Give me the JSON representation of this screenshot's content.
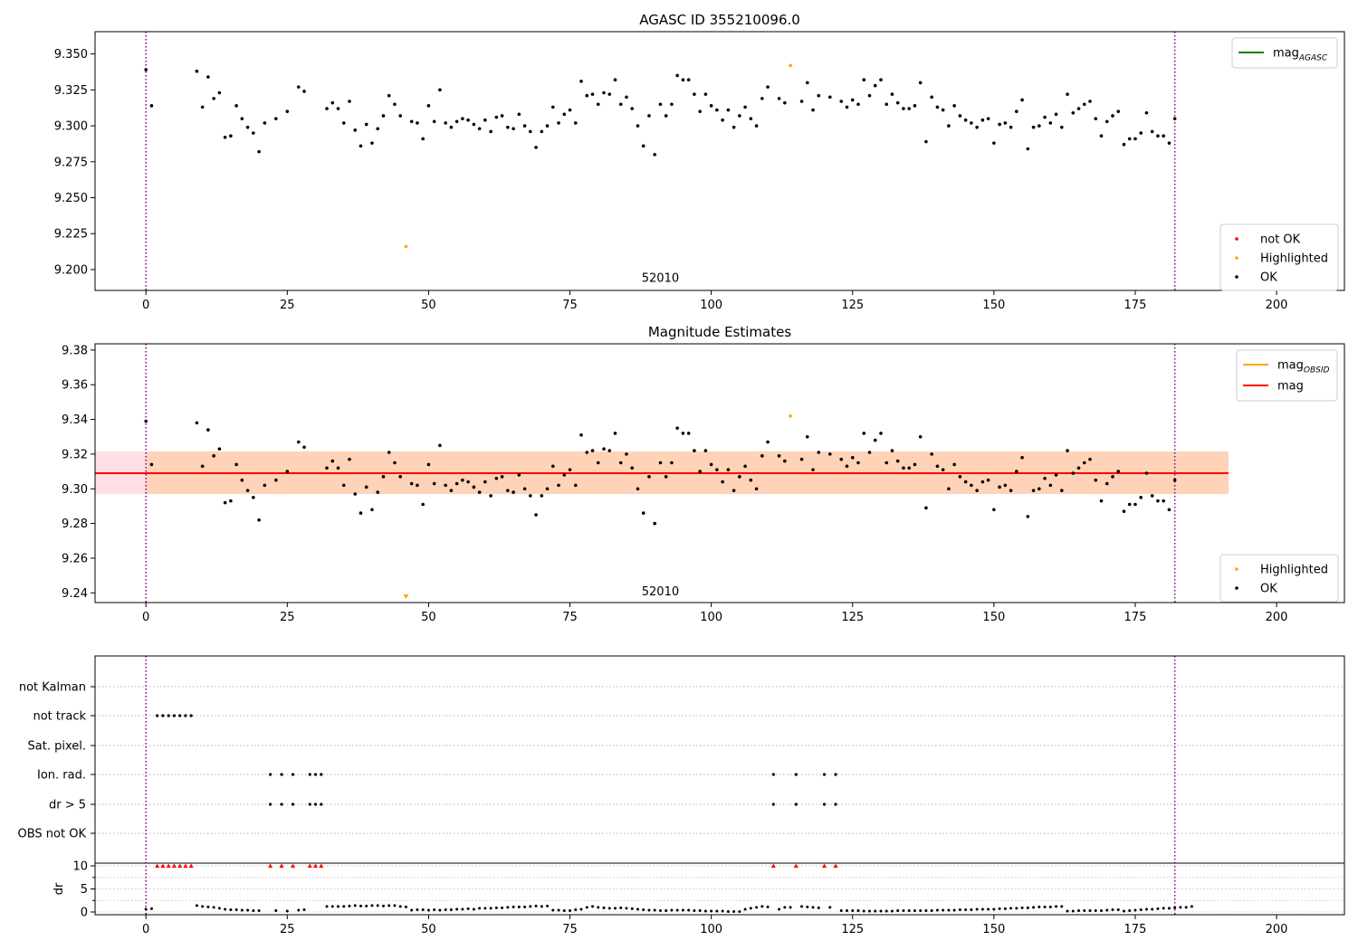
{
  "figure": {
    "vline_x": [
      0,
      182
    ]
  },
  "chart_data": [
    {
      "type": "scatter",
      "title": "AGASC ID 355210096.0",
      "xlim": [
        -9,
        212
      ],
      "ylim": [
        9.1855,
        9.3655
      ],
      "xticks": [
        0,
        25,
        50,
        75,
        100,
        125,
        150,
        175,
        200
      ],
      "xtick_labels": [
        "0",
        "25",
        "50",
        "75",
        "100",
        "125",
        "150",
        "175",
        "200"
      ],
      "yticks": [
        9.2,
        9.225,
        9.25,
        9.275,
        9.3,
        9.325,
        9.35
      ],
      "ytick_labels": [
        "9.200",
        "9.225",
        "9.250",
        "9.275",
        "9.300",
        "9.325",
        "9.350"
      ],
      "annotation": {
        "text": "52010",
        "x": 91,
        "y": 9.1915
      },
      "x": [
        0,
        1,
        9,
        10,
        11,
        12,
        13,
        14,
        15,
        16,
        17,
        18,
        19,
        20,
        21,
        23,
        25,
        27,
        28,
        32,
        33,
        34,
        35,
        36,
        37,
        38,
        39,
        40,
        41,
        42,
        43,
        44,
        45,
        47,
        48,
        49,
        50,
        51,
        52,
        53,
        54,
        55,
        56,
        57,
        58,
        59,
        60,
        61,
        62,
        63,
        64,
        65,
        66,
        67,
        68,
        69,
        70,
        71,
        72,
        73,
        74,
        75,
        76,
        77,
        78,
        79,
        80,
        81,
        82,
        83,
        84,
        85,
        86,
        87,
        88,
        89,
        90,
        91,
        92,
        93,
        94,
        95,
        96,
        97,
        98,
        99,
        100,
        101,
        102,
        103,
        104,
        105,
        106,
        107,
        108,
        109,
        110,
        112,
        113,
        116,
        117,
        118,
        119,
        121,
        123,
        124,
        125,
        126,
        127,
        128,
        129,
        130,
        131,
        132,
        133,
        134,
        135,
        136,
        137,
        138,
        139,
        140,
        141,
        142,
        143,
        144,
        145,
        146,
        147,
        148,
        149,
        150,
        151,
        152,
        153,
        154,
        155,
        156,
        157,
        158,
        159,
        160,
        161,
        162,
        163,
        164,
        165,
        166,
        167,
        168,
        169,
        170,
        171,
        172,
        173,
        174,
        175,
        176,
        177,
        178,
        179,
        180,
        181,
        182
      ],
      "y": [
        9.339,
        9.314,
        9.338,
        9.313,
        9.334,
        9.319,
        9.323,
        9.292,
        9.293,
        9.314,
        9.305,
        9.299,
        9.295,
        9.282,
        9.302,
        9.305,
        9.31,
        9.327,
        9.324,
        9.312,
        9.316,
        9.312,
        9.302,
        9.317,
        9.297,
        9.286,
        9.301,
        9.288,
        9.298,
        9.307,
        9.321,
        9.315,
        9.307,
        9.303,
        9.302,
        9.291,
        9.314,
        9.303,
        9.325,
        9.302,
        9.299,
        9.303,
        9.305,
        9.304,
        9.301,
        9.298,
        9.304,
        9.296,
        9.306,
        9.307,
        9.299,
        9.298,
        9.308,
        9.3,
        9.296,
        9.285,
        9.296,
        9.3,
        9.313,
        9.302,
        9.308,
        9.311,
        9.302,
        9.331,
        9.321,
        9.322,
        9.315,
        9.323,
        9.322,
        9.332,
        9.315,
        9.32,
        9.312,
        9.3,
        9.286,
        9.307,
        9.28,
        9.315,
        9.307,
        9.315,
        9.335,
        9.332,
        9.332,
        9.322,
        9.31,
        9.322,
        9.314,
        9.311,
        9.304,
        9.311,
        9.299,
        9.307,
        9.313,
        9.305,
        9.3,
        9.319,
        9.327,
        9.319,
        9.316,
        9.317,
        9.33,
        9.311,
        9.321,
        9.32,
        9.317,
        9.313,
        9.318,
        9.315,
        9.332,
        9.321,
        9.328,
        9.332,
        9.315,
        9.322,
        9.316,
        9.312,
        9.312,
        9.314,
        9.33,
        9.289,
        9.32,
        9.313,
        9.311,
        9.3,
        9.314,
        9.307,
        9.304,
        9.302,
        9.299,
        9.304,
        9.305,
        9.288,
        9.301,
        9.302,
        9.299,
        9.31,
        9.318,
        9.284,
        9.299,
        9.3,
        9.306,
        9.302,
        9.308,
        9.299,
        9.322,
        9.309,
        9.312,
        9.315,
        9.317,
        9.305,
        9.293,
        9.303,
        9.307,
        9.31,
        9.287,
        9.291,
        9.291,
        9.295,
        9.309,
        9.296,
        9.293,
        9.293,
        9.288,
        9.305
      ],
      "highlighted": {
        "x": [
          46,
          114
        ],
        "y": [
          9.216,
          9.342
        ]
      },
      "legend_lines": [
        {
          "label": "mag",
          "sub": "AGASC",
          "color": "#008000"
        }
      ],
      "legend_points": [
        {
          "label": "not OK",
          "color": "#ff0000"
        },
        {
          "label": "Highlighted",
          "color": "#ffa500"
        },
        {
          "label": "OK",
          "color": "#000000"
        }
      ]
    },
    {
      "type": "scatter",
      "title": "Magnitude Estimates",
      "xlim": [
        -9,
        212
      ],
      "ylim": [
        9.2344,
        9.3836
      ],
      "xticks": [
        0,
        25,
        50,
        75,
        100,
        125,
        150,
        175,
        200
      ],
      "xtick_labels": [
        "0",
        "25",
        "50",
        "75",
        "100",
        "125",
        "150",
        "175",
        "200"
      ],
      "yticks": [
        9.24,
        9.26,
        9.28,
        9.3,
        9.32,
        9.34,
        9.36,
        9.38
      ],
      "ytick_labels": [
        "9.24",
        "9.26",
        "9.28",
        "9.30",
        "9.32",
        "9.34",
        "9.36",
        "9.38"
      ],
      "annotation": {
        "text": "52010",
        "x": 91,
        "y": 9.2385
      },
      "mag": 9.309,
      "band_outer": {
        "x0": 0,
        "x1": 191.5,
        "y0": 9.297,
        "y1": 9.3215
      },
      "band_inner": {
        "x0": 0,
        "x1": 191.5,
        "y0": 9.297,
        "y1": 9.3215
      },
      "highlighted": {
        "x": [
          114
        ],
        "y": [
          9.342
        ]
      },
      "clipped_marker": {
        "x": 46
      },
      "legend_lines": [
        {
          "label": "mag",
          "sub": "OBSID",
          "color": "#ffa500"
        },
        {
          "label": "mag",
          "sub": "",
          "color": "#ff0000"
        }
      ],
      "legend_points": [
        {
          "label": "Highlighted",
          "color": "#ffa500"
        },
        {
          "label": "OK",
          "color": "#000000"
        }
      ]
    },
    {
      "type": "scatter",
      "xlim": [
        -9,
        212
      ],
      "xticks": [
        0,
        25,
        50,
        75,
        100,
        125,
        150,
        175,
        200
      ],
      "xtick_labels": [
        "0",
        "25",
        "50",
        "75",
        "100",
        "125",
        "150",
        "175",
        "200"
      ],
      "flag_rows": [
        "not Kalman",
        "not track",
        "Sat. pixel.",
        "Ion. rad.",
        "dr > 5",
        "OBS not OK"
      ],
      "flag_points": {
        "not Kalman": [],
        "not track": [
          2,
          3,
          4,
          5,
          6,
          7,
          8
        ],
        "Sat. pixel.": [],
        "Ion. rad.": [
          22,
          24,
          26,
          29,
          30,
          31,
          111,
          115,
          120,
          122
        ],
        "dr > 5": [
          22,
          24,
          26,
          29,
          30,
          31,
          111,
          115,
          120,
          122
        ],
        "OBS not OK": []
      },
      "ylabel": "dr",
      "dr_yticks": [
        0,
        5,
        10
      ],
      "dr_ytick_labels": [
        "0",
        "5",
        "10"
      ],
      "dr_ylim": [
        -0.5,
        10.5
      ],
      "dr_clipped_x": [
        2,
        3,
        4,
        5,
        6,
        7,
        8,
        22,
        24,
        26,
        29,
        30,
        31,
        111,
        115,
        120,
        122
      ],
      "dr_values": [
        0.6,
        0.7,
        null,
        null,
        null,
        null,
        null,
        null,
        null,
        1.4,
        1.2,
        1.1,
        1.0,
        0.8,
        0.6,
        0.5,
        0.5,
        0.4,
        0.4,
        0.3,
        0.3,
        null,
        null,
        0.3,
        null,
        0.2,
        null,
        0.4,
        0.5,
        null,
        null,
        null,
        1.2,
        1.2,
        1.2,
        1.2,
        1.3,
        1.4,
        1.3,
        1.3,
        1.4,
        1.4,
        1.3,
        1.4,
        1.4,
        1.2,
        1.1,
        0.4,
        0.5,
        0.5,
        0.4,
        0.5,
        0.4,
        0.5,
        0.5,
        0.6,
        0.6,
        0.7,
        0.6,
        0.8,
        0.8,
        0.8,
        0.9,
        0.9,
        1.0,
        1.1,
        1.1,
        1.1,
        1.2,
        1.3,
        1.2,
        1.3,
        0.4,
        0.4,
        0.3,
        0.3,
        0.5,
        0.6,
        1.0,
        1.2,
        1.0,
        0.9,
        0.8,
        0.8,
        0.9,
        0.8,
        0.7,
        0.6,
        0.5,
        0.4,
        0.4,
        0.3,
        0.3,
        0.4,
        0.4,
        0.4,
        0.4,
        0.3,
        0.3,
        0.2,
        0.2,
        0.2,
        0.2,
        0.1,
        0.1,
        0.1,
        0.6,
        0.8,
        1.0,
        1.2,
        1.1,
        null,
        0.6,
        1.0,
        1.0,
        null,
        1.2,
        1.1,
        1.0,
        0.9,
        null,
        1.0,
        null,
        0.3,
        0.3,
        0.3,
        0.3,
        0.2,
        0.2,
        0.2,
        0.2,
        0.2,
        0.2,
        0.3,
        0.3,
        0.3,
        0.3,
        0.3,
        0.3,
        0.3,
        0.4,
        0.4,
        0.4,
        0.4,
        0.5,
        0.5,
        0.5,
        0.6,
        0.6,
        0.6,
        0.6,
        0.7,
        0.7,
        0.8,
        0.8,
        0.9,
        0.9,
        1.0,
        1.1,
        1.1,
        1.1,
        1.2,
        1.2,
        0.2,
        0.2,
        0.3,
        0.3,
        0.3,
        0.3,
        0.3,
        0.4,
        0.5,
        0.5,
        0.2,
        0.3,
        0.4,
        0.5,
        0.6,
        0.6,
        0.7,
        0.8,
        0.8,
        0.9,
        1.0,
        1.0,
        1.2
      ]
    }
  ]
}
